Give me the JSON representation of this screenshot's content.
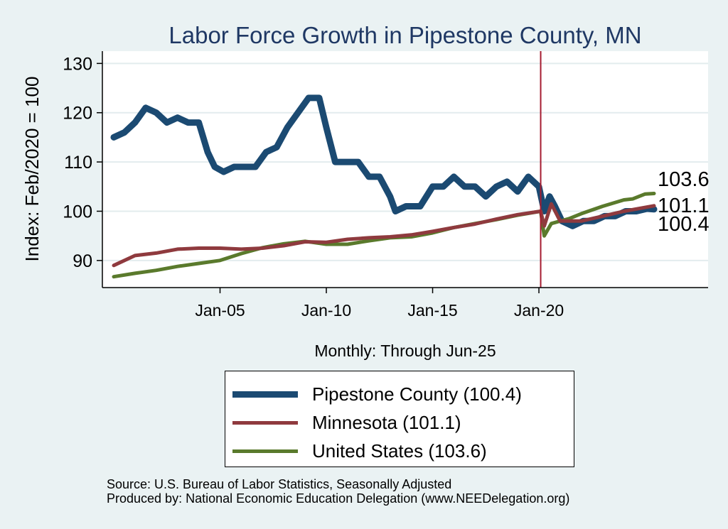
{
  "chart_data": {
    "type": "line",
    "title": "Labor Force Growth in Pipestone  County, MN",
    "xlabel": "Monthly: Through Jun-25",
    "ylabel": "Index: Feb/2020 = 100",
    "x_range": [
      "2000-01",
      "2025-06"
    ],
    "ylim": [
      84.5,
      132.5
    ],
    "y_ticks": [
      90,
      100,
      110,
      120,
      130
    ],
    "x_ticks": [
      {
        "label": "Jan-05",
        "date": "2005-01"
      },
      {
        "label": "Jan-10",
        "date": "2010-01"
      },
      {
        "label": "Jan-15",
        "date": "2015-01"
      },
      {
        "label": "Jan-20",
        "date": "2020-01"
      }
    ],
    "grid": true,
    "reference_line": {
      "date": "2020-02",
      "color": "#a51c30"
    },
    "series": [
      {
        "name": "Pipestone  County",
        "color": "#1b4a72",
        "line_width": 9,
        "points": [
          [
            "2000-01",
            115
          ],
          [
            "2000-07",
            116
          ],
          [
            "2001-01",
            118
          ],
          [
            "2001-07",
            121
          ],
          [
            "2002-01",
            120
          ],
          [
            "2002-07",
            118
          ],
          [
            "2003-01",
            119
          ],
          [
            "2003-07",
            118
          ],
          [
            "2004-01",
            118
          ],
          [
            "2004-06",
            112
          ],
          [
            "2004-10",
            109
          ],
          [
            "2005-03",
            108
          ],
          [
            "2005-09",
            109
          ],
          [
            "2006-03",
            109
          ],
          [
            "2006-09",
            109
          ],
          [
            "2007-03",
            112
          ],
          [
            "2007-09",
            113
          ],
          [
            "2008-03",
            117
          ],
          [
            "2008-09",
            120
          ],
          [
            "2009-03",
            123
          ],
          [
            "2009-09",
            123
          ],
          [
            "2010-01",
            117
          ],
          [
            "2010-06",
            110
          ],
          [
            "2011-01",
            110
          ],
          [
            "2011-07",
            110
          ],
          [
            "2012-01",
            107
          ],
          [
            "2012-07",
            107
          ],
          [
            "2013-01",
            103
          ],
          [
            "2013-04",
            100
          ],
          [
            "2013-10",
            101
          ],
          [
            "2014-06",
            101
          ],
          [
            "2015-01",
            105
          ],
          [
            "2015-07",
            105
          ],
          [
            "2016-01",
            107
          ],
          [
            "2016-07",
            105
          ],
          [
            "2017-01",
            105
          ],
          [
            "2017-07",
            103
          ],
          [
            "2018-01",
            105
          ],
          [
            "2018-07",
            106
          ],
          [
            "2019-01",
            104
          ],
          [
            "2019-07",
            107
          ],
          [
            "2020-01",
            105
          ],
          [
            "2020-04",
            100
          ],
          [
            "2020-07",
            103
          ],
          [
            "2020-10",
            101
          ],
          [
            "2021-02",
            98
          ],
          [
            "2021-08",
            97
          ],
          [
            "2022-02",
            98
          ],
          [
            "2022-08",
            98
          ],
          [
            "2023-02",
            99
          ],
          [
            "2023-08",
            99
          ],
          [
            "2024-02",
            100
          ],
          [
            "2024-08",
            100
          ],
          [
            "2025-02",
            100.5
          ],
          [
            "2025-06",
            100.4
          ]
        ],
        "end_value": 100.4
      },
      {
        "name": "Minnesota",
        "color": "#8f3a3e",
        "line_width": 5,
        "points": [
          [
            "2000-01",
            89
          ],
          [
            "2001-01",
            91
          ],
          [
            "2002-01",
            91.5
          ],
          [
            "2003-01",
            92.3
          ],
          [
            "2004-01",
            92.5
          ],
          [
            "2005-01",
            92.5
          ],
          [
            "2006-01",
            92.3
          ],
          [
            "2007-01",
            92.5
          ],
          [
            "2008-01",
            93
          ],
          [
            "2009-01",
            93.8
          ],
          [
            "2010-01",
            93.7
          ],
          [
            "2011-01",
            94.3
          ],
          [
            "2012-01",
            94.6
          ],
          [
            "2013-01",
            94.8
          ],
          [
            "2014-01",
            95.2
          ],
          [
            "2015-01",
            95.9
          ],
          [
            "2016-01",
            96.7
          ],
          [
            "2017-01",
            97.4
          ],
          [
            "2018-01",
            98.4
          ],
          [
            "2019-01",
            99.3
          ],
          [
            "2020-02",
            100
          ],
          [
            "2020-04",
            97
          ],
          [
            "2020-08",
            101.5
          ],
          [
            "2021-01",
            98
          ],
          [
            "2022-01",
            98
          ],
          [
            "2023-01",
            99
          ],
          [
            "2024-01",
            100
          ],
          [
            "2025-06",
            101.1
          ]
        ],
        "end_value": 101.1
      },
      {
        "name": "United States",
        "color": "#5a7a2c",
        "line_width": 5,
        "points": [
          [
            "2000-01",
            86.7
          ],
          [
            "2001-01",
            87.4
          ],
          [
            "2002-01",
            88
          ],
          [
            "2003-01",
            88.8
          ],
          [
            "2004-01",
            89.4
          ],
          [
            "2005-01",
            90
          ],
          [
            "2006-01",
            91.4
          ],
          [
            "2007-01",
            92.6
          ],
          [
            "2008-01",
            93.4
          ],
          [
            "2009-01",
            93.9
          ],
          [
            "2010-01",
            93.3
          ],
          [
            "2011-01",
            93.3
          ],
          [
            "2012-01",
            94
          ],
          [
            "2013-01",
            94.6
          ],
          [
            "2014-01",
            94.8
          ],
          [
            "2015-01",
            95.6
          ],
          [
            "2016-01",
            96.7
          ],
          [
            "2017-01",
            97.5
          ],
          [
            "2018-01",
            98.3
          ],
          [
            "2019-01",
            99.2
          ],
          [
            "2020-02",
            100
          ],
          [
            "2020-04",
            95
          ],
          [
            "2020-08",
            97.5
          ],
          [
            "2021-06",
            98.5
          ],
          [
            "2022-01",
            99.5
          ],
          [
            "2023-01",
            101
          ],
          [
            "2024-01",
            102.3
          ],
          [
            "2024-06",
            102.5
          ],
          [
            "2025-01",
            103.5
          ],
          [
            "2025-06",
            103.6
          ]
        ],
        "end_value": 103.6
      }
    ],
    "end_labels": [
      "103.6",
      "101.1",
      "100.4"
    ],
    "legend": {
      "placement": "bottom",
      "entries": [
        "Pipestone  County (100.4)",
        "Minnesota (101.1)",
        "United States (103.6)"
      ]
    }
  },
  "source": {
    "line1": "Source: U.S. Bureau of Labor Statistics, Seasonally Adjusted",
    "line2": "Produced by: National Economic Education Delegation (www.NEEDelegation.org)"
  }
}
